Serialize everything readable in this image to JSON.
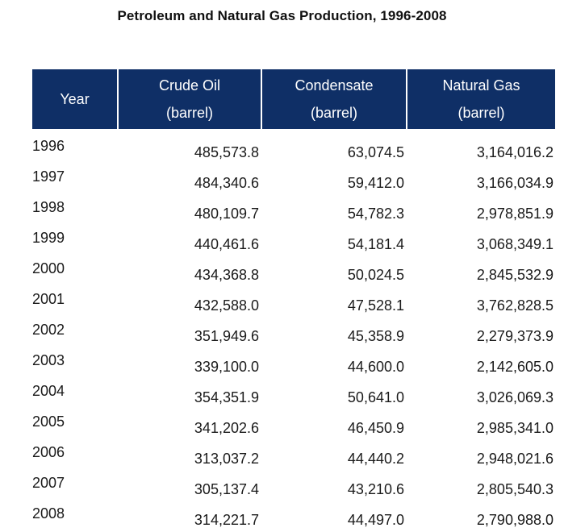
{
  "title": "Petroleum and Natural Gas Production, 1996-2008",
  "header": {
    "year": "Year",
    "crude_oil": [
      "Crude Oil",
      "(barrel)"
    ],
    "condensate": [
      "Condensate",
      "(barrel)"
    ],
    "natural_gas": [
      "Natural Gas",
      "(barrel)"
    ]
  },
  "header_color": "#0f2f66",
  "rows": [
    [
      "1996",
      "485,573.8",
      "63,074.5",
      "3,164,016.2"
    ],
    [
      "1997",
      "484,340.6",
      "59,412.0",
      "3,166,034.9"
    ],
    [
      "1998",
      "480,109.7",
      "54,782.3",
      "2,978,851.9"
    ],
    [
      "1999",
      "440,461.6",
      "54,181.4",
      "3,068,349.1"
    ],
    [
      "2000",
      "434,368.8",
      "50,024.5",
      "2,845,532.9"
    ],
    [
      "2001",
      "432,588.0",
      "47,528.1",
      "3,762,828.5"
    ],
    [
      "2002",
      "351,949.6",
      "45,358.9",
      "2,279,373.9"
    ],
    [
      "2003",
      "339,100.0",
      "44,600.0",
      "2,142,605.0"
    ],
    [
      "2004",
      "354,351.9",
      "50,641.0",
      "3,026,069.3"
    ],
    [
      "2005",
      "341,202.6",
      "46,450.9",
      "2,985,341.0"
    ],
    [
      "2006",
      "313,037.2",
      "44,440.2",
      "2,948,021.6"
    ],
    [
      "2007",
      "305,137.4",
      "43,210.6",
      "2,805,540.3"
    ],
    [
      "2008",
      "314,221.7",
      "44,497.0",
      "2,790,988.0"
    ]
  ]
}
